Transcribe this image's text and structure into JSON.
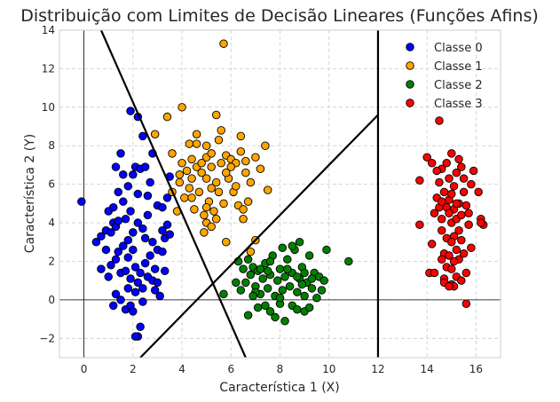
{
  "chart_data": {
    "type": "scatter",
    "title": "Distribuição com Limites de Decisão Lineares (Funções Afins)",
    "xlabel": "Característica 1 (X)",
    "ylabel": "Característica 2 (Y)",
    "xlim": [
      -1,
      17
    ],
    "ylim": [
      -3,
      14
    ],
    "xticks": [
      0,
      2,
      4,
      6,
      8,
      10,
      12,
      14,
      16
    ],
    "yticks": [
      -2,
      0,
      2,
      4,
      6,
      8,
      10,
      12,
      14
    ],
    "xtick_labels": [
      "0",
      "2",
      "4",
      "6",
      "8",
      "10",
      "12",
      "14",
      "16"
    ],
    "ytick_labels": [
      "−2",
      "0",
      "2",
      "4",
      "6",
      "8",
      "10",
      "12",
      "14"
    ],
    "grid": true,
    "legend_position": "top-right",
    "series": [
      {
        "name": "Classe 0",
        "color": "#0000ff",
        "points": [
          [
            -0.1,
            5.1
          ],
          [
            0.5,
            3.0
          ],
          [
            0.7,
            3.3
          ],
          [
            0.9,
            3.6
          ],
          [
            1.0,
            4.6
          ],
          [
            1.1,
            3.5
          ],
          [
            1.2,
            4.0
          ],
          [
            1.3,
            3.8
          ],
          [
            1.3,
            6.9
          ],
          [
            1.4,
            4.1
          ],
          [
            1.5,
            7.6
          ],
          [
            1.6,
            5.1
          ],
          [
            1.7,
            4.2
          ],
          [
            1.8,
            5.9
          ],
          [
            1.9,
            9.8
          ],
          [
            2.0,
            6.5
          ],
          [
            2.1,
            6.9
          ],
          [
            2.2,
            9.5
          ],
          [
            2.3,
            6.8
          ],
          [
            2.4,
            8.5
          ],
          [
            2.5,
            6.9
          ],
          [
            2.6,
            5.4
          ],
          [
            2.7,
            6.1
          ],
          [
            2.8,
            7.6
          ],
          [
            0.7,
            1.6
          ],
          [
            1.0,
            1.2
          ],
          [
            1.1,
            1.8
          ],
          [
            1.3,
            2.1
          ],
          [
            1.4,
            2.5
          ],
          [
            1.5,
            1.4
          ],
          [
            1.6,
            2.8
          ],
          [
            1.7,
            1.5
          ],
          [
            1.8,
            2.2
          ],
          [
            1.9,
            1.1
          ],
          [
            2.0,
            2.6
          ],
          [
            2.1,
            1.7
          ],
          [
            2.2,
            0.9
          ],
          [
            2.3,
            1.4
          ],
          [
            2.4,
            0.6
          ],
          [
            2.5,
            1.9
          ],
          [
            2.6,
            1.2
          ],
          [
            2.7,
            2.3
          ],
          [
            2.8,
            1.0
          ],
          [
            2.9,
            0.5
          ],
          [
            3.0,
            0.9
          ],
          [
            1.2,
            -0.3
          ],
          [
            1.3,
            0.3
          ],
          [
            1.5,
            0.0
          ],
          [
            1.7,
            -0.5
          ],
          [
            1.8,
            0.6
          ],
          [
            1.9,
            -0.3
          ],
          [
            2.0,
            -0.6
          ],
          [
            2.1,
            0.4
          ],
          [
            2.2,
            -1.9
          ],
          [
            2.3,
            -1.4
          ],
          [
            2.1,
            -1.9
          ],
          [
            2.4,
            -0.1
          ],
          [
            1.8,
            3.1
          ],
          [
            2.0,
            3.5
          ],
          [
            2.2,
            4.0
          ],
          [
            2.4,
            3.7
          ],
          [
            2.6,
            4.4
          ],
          [
            2.8,
            3.0
          ],
          [
            3.0,
            4.9
          ],
          [
            3.2,
            3.6
          ],
          [
            3.3,
            3.2
          ],
          [
            3.4,
            3.9
          ],
          [
            3.5,
            3.4
          ],
          [
            3.2,
            4.8
          ],
          [
            3.4,
            5.3
          ],
          [
            3.0,
            2.6
          ],
          [
            2.9,
            1.6
          ],
          [
            3.1,
            0.2
          ],
          [
            3.3,
            1.5
          ],
          [
            3.2,
            2.5
          ],
          [
            2.2,
            5.5
          ],
          [
            1.9,
            4.6
          ],
          [
            1.6,
            6.5
          ],
          [
            1.4,
            5.6
          ],
          [
            2.5,
            3.2
          ],
          [
            1.2,
            4.8
          ],
          [
            0.9,
            2.6
          ],
          [
            3.5,
            6.4
          ]
        ]
      },
      {
        "name": "Classe 1",
        "color": "#ffa500",
        "points": [
          [
            2.9,
            8.6
          ],
          [
            3.4,
            9.5
          ],
          [
            4.0,
            10.0
          ],
          [
            4.3,
            8.1
          ],
          [
            4.4,
            7.3
          ],
          [
            4.6,
            8.1
          ],
          [
            4.8,
            6.6
          ],
          [
            5.0,
            7.4
          ],
          [
            5.2,
            6.9
          ],
          [
            5.4,
            9.6
          ],
          [
            5.5,
            8.3
          ],
          [
            5.7,
            13.3
          ],
          [
            5.6,
            8.8
          ],
          [
            5.8,
            7.5
          ],
          [
            6.0,
            7.3
          ],
          [
            6.2,
            7.1
          ],
          [
            6.4,
            8.5
          ],
          [
            6.6,
            6.6
          ],
          [
            6.8,
            6.1
          ],
          [
            7.0,
            7.4
          ],
          [
            7.2,
            6.8
          ],
          [
            7.4,
            8.0
          ],
          [
            7.5,
            5.7
          ],
          [
            3.6,
            5.6
          ],
          [
            3.9,
            6.1
          ],
          [
            4.1,
            5.3
          ],
          [
            4.3,
            5.8
          ],
          [
            4.5,
            4.7
          ],
          [
            4.7,
            5.6
          ],
          [
            4.9,
            4.4
          ],
          [
            5.1,
            5.1
          ],
          [
            5.3,
            4.6
          ],
          [
            5.5,
            5.6
          ],
          [
            5.7,
            5.0
          ],
          [
            5.9,
            6.3
          ],
          [
            6.1,
            5.6
          ],
          [
            6.3,
            4.9
          ],
          [
            6.5,
            4.2
          ],
          [
            4.0,
            7.1
          ],
          [
            4.2,
            6.7
          ],
          [
            4.4,
            6.3
          ],
          [
            4.6,
            6.9
          ],
          [
            4.8,
            7.1
          ],
          [
            5.0,
            6.3
          ],
          [
            5.2,
            7.6
          ],
          [
            5.4,
            6.1
          ],
          [
            5.6,
            7.1
          ],
          [
            5.8,
            6.6
          ],
          [
            6.0,
            6.9
          ],
          [
            6.2,
            5.9
          ],
          [
            6.4,
            7.7
          ],
          [
            6.6,
            7.2
          ],
          [
            5.0,
            4.0
          ],
          [
            5.2,
            3.8
          ],
          [
            5.4,
            4.2
          ],
          [
            4.9,
            3.5
          ],
          [
            5.0,
            4.8
          ],
          [
            5.2,
            5.8
          ],
          [
            5.8,
            3.0
          ],
          [
            7.0,
            3.1
          ],
          [
            6.8,
            2.5
          ],
          [
            3.8,
            4.6
          ],
          [
            3.6,
            7.6
          ],
          [
            6.7,
            5.1
          ],
          [
            6.5,
            4.7
          ],
          [
            4.6,
            8.6
          ],
          [
            5.0,
            8.0
          ],
          [
            3.9,
            6.5
          ],
          [
            4.4,
            5.3
          ]
        ]
      },
      {
        "name": "Classe 2",
        "color": "#008000",
        "points": [
          [
            5.7,
            0.3
          ],
          [
            6.2,
            0.9
          ],
          [
            6.4,
            0.5
          ],
          [
            6.5,
            1.6
          ],
          [
            6.6,
            0.9
          ],
          [
            6.7,
            2.1
          ],
          [
            6.8,
            1.3
          ],
          [
            6.9,
            1.7
          ],
          [
            7.0,
            0.7
          ],
          [
            7.1,
            1.5
          ],
          [
            7.2,
            0.3
          ],
          [
            7.3,
            1.1
          ],
          [
            7.4,
            1.9
          ],
          [
            7.5,
            0.6
          ],
          [
            7.6,
            1.3
          ],
          [
            7.7,
            2.3
          ],
          [
            7.8,
            0.2
          ],
          [
            7.9,
            1.0
          ],
          [
            8.0,
            1.6
          ],
          [
            8.1,
            0.5
          ],
          [
            8.2,
            1.2
          ],
          [
            8.3,
            2.1
          ],
          [
            8.4,
            0.7
          ],
          [
            8.5,
            1.4
          ],
          [
            8.6,
            2.6
          ],
          [
            8.7,
            0.4
          ],
          [
            8.8,
            1.1
          ],
          [
            8.9,
            1.7
          ],
          [
            9.0,
            0.2
          ],
          [
            9.1,
            0.9
          ],
          [
            9.2,
            2.3
          ],
          [
            9.3,
            0.6
          ],
          [
            9.4,
            1.4
          ],
          [
            9.5,
            0.1
          ],
          [
            9.6,
            1.2
          ],
          [
            9.7,
            0.5
          ],
          [
            9.8,
            1.0
          ],
          [
            9.9,
            2.6
          ],
          [
            10.8,
            2.0
          ],
          [
            6.7,
            -0.8
          ],
          [
            7.1,
            -0.4
          ],
          [
            7.4,
            -0.3
          ],
          [
            7.6,
            -0.6
          ],
          [
            7.8,
            -0.9
          ],
          [
            8.0,
            -0.2
          ],
          [
            8.2,
            -1.1
          ],
          [
            8.5,
            -0.3
          ],
          [
            8.7,
            -0.5
          ],
          [
            9.0,
            -0.6
          ],
          [
            9.2,
            -0.4
          ],
          [
            7.2,
            1.6
          ],
          [
            7.6,
            2.0
          ],
          [
            8.3,
            1.6
          ],
          [
            8.7,
            1.2
          ],
          [
            9.3,
            1.1
          ],
          [
            8.5,
            2.8
          ],
          [
            8.8,
            3.0
          ],
          [
            7.0,
            0.4
          ],
          [
            8.0,
            0.1
          ],
          [
            8.9,
            0.8
          ],
          [
            9.0,
            1.4
          ],
          [
            6.9,
            0.2
          ],
          [
            7.5,
            1.5
          ],
          [
            8.1,
            2.7
          ],
          [
            6.3,
            2.0
          ]
        ]
      },
      {
        "name": "Classe 3",
        "color": "#ff0000",
        "points": [
          [
            13.7,
            3.9
          ],
          [
            13.7,
            6.2
          ],
          [
            14.0,
            7.4
          ],
          [
            14.1,
            1.4
          ],
          [
            14.2,
            2.9
          ],
          [
            14.3,
            4.5
          ],
          [
            14.3,
            1.4
          ],
          [
            14.4,
            5.3
          ],
          [
            14.5,
            6.1
          ],
          [
            14.5,
            9.3
          ],
          [
            14.6,
            4.2
          ],
          [
            14.6,
            6.8
          ],
          [
            14.6,
            3.6
          ],
          [
            14.7,
            1.1
          ],
          [
            14.7,
            2.4
          ],
          [
            14.7,
            5.6
          ],
          [
            14.7,
            0.9
          ],
          [
            14.8,
            4.8
          ],
          [
            14.8,
            1.7
          ],
          [
            14.8,
            3.2
          ],
          [
            14.9,
            6.3
          ],
          [
            14.9,
            2.3
          ],
          [
            14.9,
            5.2
          ],
          [
            15.0,
            4.0
          ],
          [
            15.0,
            7.6
          ],
          [
            15.0,
            0.8
          ],
          [
            15.0,
            5.5
          ],
          [
            15.0,
            1.6
          ],
          [
            15.1,
            3.3
          ],
          [
            15.1,
            5.9
          ],
          [
            15.1,
            4.7
          ],
          [
            15.1,
            0.7
          ],
          [
            15.2,
            2.6
          ],
          [
            15.2,
            6.6
          ],
          [
            15.2,
            4.2
          ],
          [
            15.2,
            1.2
          ],
          [
            15.3,
            3.6
          ],
          [
            15.3,
            5.0
          ],
          [
            15.3,
            2.1
          ],
          [
            15.3,
            7.3
          ],
          [
            15.4,
            4.4
          ],
          [
            15.4,
            1.0
          ],
          [
            15.4,
            3.1
          ],
          [
            15.5,
            6.3
          ],
          [
            15.5,
            2.4
          ],
          [
            15.5,
            5.6
          ],
          [
            15.6,
            4.9
          ],
          [
            15.6,
            -0.2
          ],
          [
            15.6,
            1.4
          ],
          [
            15.7,
            3.9
          ],
          [
            15.8,
            6.0
          ],
          [
            15.8,
            2.7
          ],
          [
            15.9,
            6.7
          ],
          [
            16.1,
            5.6
          ],
          [
            16.2,
            4.2
          ],
          [
            16.3,
            3.9
          ],
          [
            14.2,
            7.1
          ],
          [
            14.4,
            6.7
          ],
          [
            14.8,
            7.1
          ],
          [
            14.9,
            4.5
          ],
          [
            15.0,
            3.0
          ],
          [
            15.2,
            5.0
          ],
          [
            14.6,
            2.1
          ],
          [
            14.5,
            4.8
          ],
          [
            15.4,
            6.9
          ],
          [
            15.7,
            4.5
          ],
          [
            16.2,
            4.0
          ],
          [
            15.1,
            2.0
          ],
          [
            14.9,
            0.7
          ],
          [
            14.6,
            5.1
          ]
        ]
      }
    ],
    "boundaries": [
      {
        "name": "line-1",
        "points": [
          [
            0.7,
            14
          ],
          [
            6.6,
            -3
          ]
        ]
      },
      {
        "name": "line-2",
        "points": [
          [
            2.3,
            -3
          ],
          [
            12,
            9.6
          ]
        ]
      },
      {
        "name": "line-3",
        "points": [
          [
            12,
            -3
          ],
          [
            12,
            14
          ]
        ]
      }
    ],
    "reference_lines": [
      {
        "orientation": "vertical",
        "value": 0
      },
      {
        "orientation": "horizontal",
        "value": 0
      }
    ]
  }
}
